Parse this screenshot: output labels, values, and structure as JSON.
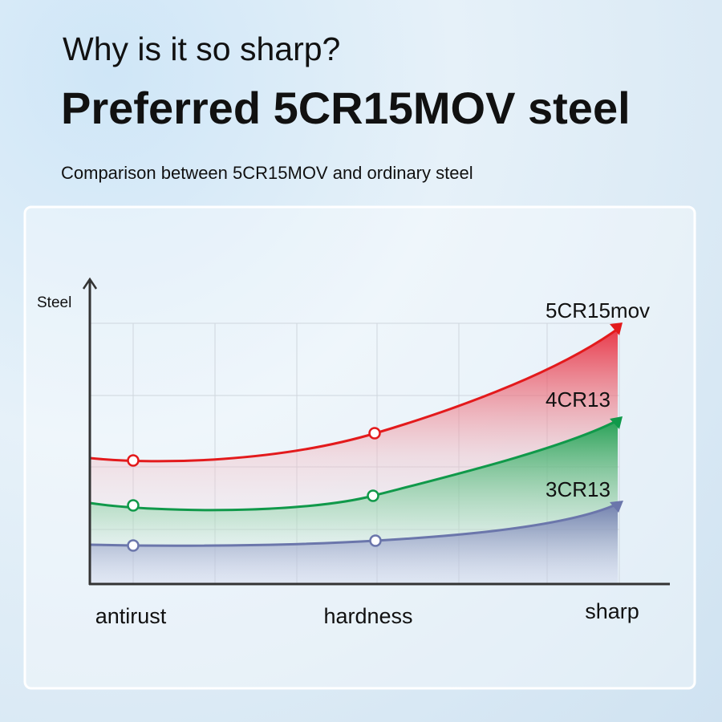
{
  "header": {
    "question": "Why is it so sharp?",
    "title": "Preferred 5CR15MOV steel",
    "subtitle": "Comparison between 5CR15MOV and ordinary steel"
  },
  "diagram": {
    "axis_label": "Steel",
    "categories": [
      "antirust",
      "hardness",
      "sharp"
    ],
    "curves": [
      {
        "label": "5CR15mov"
      },
      {
        "label": "4CR13"
      },
      {
        "label": "3CR13"
      }
    ]
  }
}
